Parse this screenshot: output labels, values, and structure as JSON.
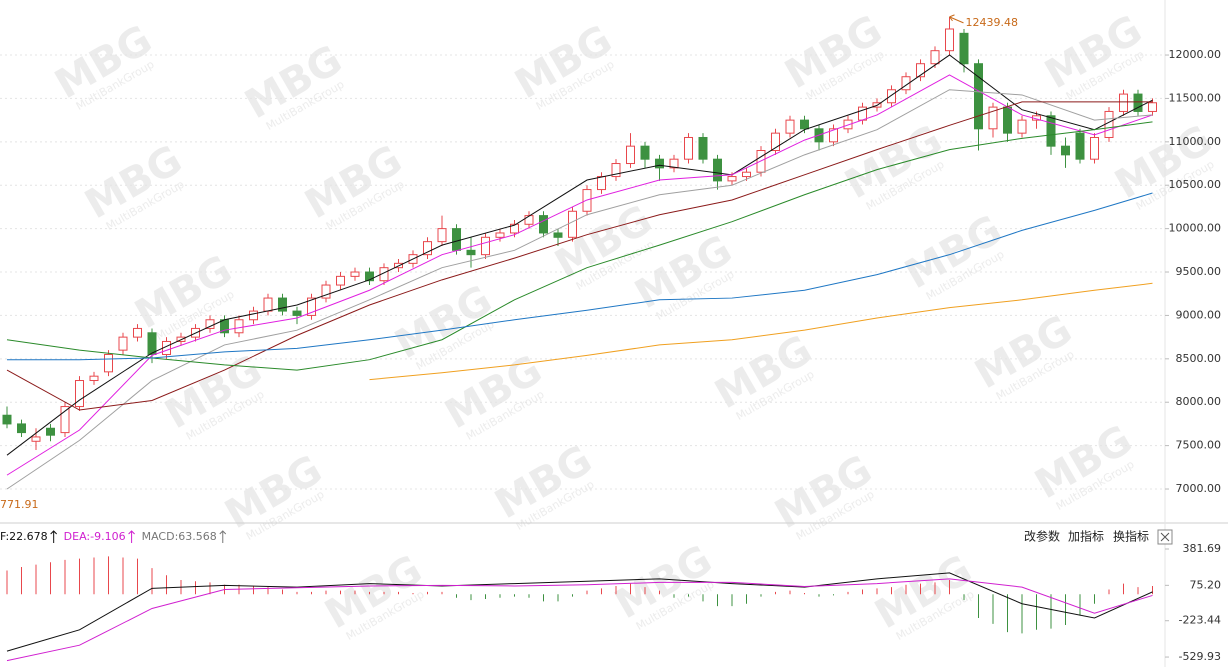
{
  "chart_data": [
    {
      "type": "candlestick",
      "ylim": [
        6620,
        12634
      ],
      "yticks": [
        {
          "value": 7000,
          "label": "7000.00"
        },
        {
          "value": 7500,
          "label": "7500.00"
        },
        {
          "value": 8000,
          "label": "8000.00"
        },
        {
          "value": 8500,
          "label": "8500.00"
        },
        {
          "value": 9000,
          "label": "9000.00"
        },
        {
          "value": 9500,
          "label": "9500.00"
        },
        {
          "value": 10000,
          "label": "10000.00"
        },
        {
          "value": 10500,
          "label": "10500.00"
        },
        {
          "value": 11000,
          "label": "11000.00"
        },
        {
          "value": 11500,
          "label": "11500.00"
        },
        {
          "value": 12000,
          "label": "12000.00"
        }
      ],
      "grid": true,
      "up_color": "#e8474c",
      "down_color": "#3d9140",
      "candles": [
        [
          7850,
          7950,
          7700,
          7750
        ],
        [
          7750,
          7800,
          7600,
          7650
        ],
        [
          7550,
          7700,
          7450,
          7600
        ],
        [
          7700,
          7750,
          7550,
          7620
        ],
        [
          7650,
          8000,
          7600,
          7950
        ],
        [
          7950,
          8300,
          7900,
          8250
        ],
        [
          8250,
          8350,
          8200,
          8300
        ],
        [
          8350,
          8600,
          8300,
          8550
        ],
        [
          8600,
          8800,
          8550,
          8750
        ],
        [
          8750,
          8900,
          8700,
          8850
        ],
        [
          8800,
          8850,
          8450,
          8550
        ],
        [
          8550,
          8750,
          8500,
          8700
        ],
        [
          8700,
          8800,
          8650,
          8750
        ],
        [
          8750,
          8900,
          8700,
          8850
        ],
        [
          8850,
          9000,
          8800,
          8950
        ],
        [
          8950,
          9000,
          8750,
          8800
        ],
        [
          8800,
          9000,
          8750,
          8950
        ],
        [
          8950,
          9100,
          8900,
          9050
        ],
        [
          9050,
          9250,
          9000,
          9200
        ],
        [
          9200,
          9250,
          9000,
          9050
        ],
        [
          9050,
          9100,
          8900,
          9000
        ],
        [
          9000,
          9250,
          8950,
          9200
        ],
        [
          9200,
          9400,
          9150,
          9350
        ],
        [
          9350,
          9500,
          9300,
          9450
        ],
        [
          9450,
          9550,
          9400,
          9500
        ],
        [
          9500,
          9550,
          9350,
          9400
        ],
        [
          9400,
          9600,
          9350,
          9550
        ],
        [
          9550,
          9650,
          9500,
          9600
        ],
        [
          9600,
          9750,
          9550,
          9700
        ],
        [
          9700,
          9900,
          9650,
          9850
        ],
        [
          9850,
          10150,
          9800,
          10000
        ],
        [
          10000,
          10050,
          9700,
          9750
        ],
        [
          9750,
          9900,
          9550,
          9700
        ],
        [
          9700,
          9950,
          9650,
          9900
        ],
        [
          9900,
          10000,
          9850,
          9950
        ],
        [
          9950,
          10100,
          9900,
          10050
        ],
        [
          10050,
          10200,
          10000,
          10150
        ],
        [
          10150,
          10200,
          9900,
          9950
        ],
        [
          9950,
          10000,
          9800,
          9900
        ],
        [
          9900,
          10250,
          9850,
          10200
        ],
        [
          10200,
          10500,
          10150,
          10450
        ],
        [
          10450,
          10650,
          10400,
          10600
        ],
        [
          10600,
          10800,
          10550,
          10750
        ],
        [
          10750,
          11100,
          10700,
          10950
        ],
        [
          10950,
          11000,
          10700,
          10800
        ],
        [
          10800,
          10850,
          10550,
          10700
        ],
        [
          10700,
          10850,
          10650,
          10800
        ],
        [
          10800,
          11100,
          10750,
          11050
        ],
        [
          11050,
          11100,
          10750,
          10800
        ],
        [
          10800,
          10850,
          10450,
          10550
        ],
        [
          10550,
          10650,
          10500,
          10600
        ],
        [
          10600,
          10700,
          10550,
          10650
        ],
        [
          10650,
          10950,
          10600,
          10900
        ],
        [
          10900,
          11150,
          10850,
          11100
        ],
        [
          11100,
          11300,
          11050,
          11250
        ],
        [
          11250,
          11300,
          11100,
          11150
        ],
        [
          11150,
          11200,
          10900,
          11000
        ],
        [
          11000,
          11200,
          10950,
          11150
        ],
        [
          11150,
          11300,
          11100,
          11250
        ],
        [
          11250,
          11450,
          11200,
          11400
        ],
        [
          11400,
          11500,
          11350,
          11450
        ],
        [
          11450,
          11650,
          11400,
          11600
        ],
        [
          11600,
          11800,
          11550,
          11750
        ],
        [
          11750,
          11950,
          11700,
          11900
        ],
        [
          11900,
          12100,
          11850,
          12050
        ],
        [
          12050,
          12439.48,
          12000,
          12300
        ],
        [
          12250,
          12300,
          11800,
          11900
        ],
        [
          11900,
          11950,
          10900,
          11150
        ],
        [
          11150,
          11450,
          11050,
          11400
        ],
        [
          11400,
          11450,
          11000,
          11100
        ],
        [
          11100,
          11300,
          11050,
          11250
        ],
        [
          11250,
          11350,
          11150,
          11300
        ],
        [
          11300,
          11350,
          10850,
          10950
        ],
        [
          10950,
          11050,
          10700,
          10850
        ],
        [
          11100,
          11150,
          10750,
          10800
        ],
        [
          10800,
          11100,
          10750,
          11050
        ],
        [
          11050,
          11400,
          11000,
          11350
        ],
        [
          11350,
          11600,
          11300,
          11550
        ],
        [
          11550,
          11600,
          11300,
          11350
        ],
        [
          11350,
          11500,
          11300,
          11450
        ]
      ],
      "x": [
        0,
        5,
        10,
        15,
        20,
        25,
        30,
        35,
        40,
        45,
        50,
        55,
        60,
        65,
        70,
        75,
        79
      ],
      "series": [
        {
          "color": "#111111",
          "values": [
            7390,
            8025,
            8567,
            8950,
            9120,
            9410,
            9810,
            10040,
            10560,
            10730,
            10620,
            11140,
            11420,
            12000,
            11370,
            11140,
            11480
          ]
        },
        {
          "color": "#e020e0",
          "values": [
            7160,
            7680,
            8540,
            8830,
            8970,
            9290,
            9700,
            9930,
            10330,
            10560,
            10620,
            11020,
            11310,
            11770,
            11310,
            11080,
            11310
          ]
        },
        {
          "color": "#a0a0a0",
          "values": [
            7000,
            7560,
            8250,
            8660,
            8830,
            9180,
            9550,
            9750,
            10160,
            10390,
            10500,
            10850,
            11140,
            11600,
            11540,
            11250,
            11310
          ]
        },
        {
          "color": "#8b1a1a",
          "values": [
            8370,
            7910,
            8020,
            8370,
            8770,
            9120,
            9410,
            9660,
            9930,
            10160,
            10330,
            10620,
            10910,
            11190,
            11460,
            11460,
            11460
          ]
        },
        {
          "color": "#2a8a2a",
          "values": [
            8720,
            8600,
            8510,
            8430,
            8370,
            8490,
            8720,
            9180,
            9550,
            9810,
            10080,
            10390,
            10680,
            10910,
            11040,
            11140,
            11230
          ]
        },
        {
          "color": "#1f77c4",
          "values": [
            8490,
            8490,
            8510,
            8580,
            8620,
            8720,
            8830,
            8950,
            9060,
            9180,
            9200,
            9290,
            9470,
            9700,
            9980,
            10210,
            10410
          ]
        },
        {
          "color": "#f0a020",
          "values": [
            null,
            null,
            null,
            null,
            null,
            8260,
            8340,
            8430,
            8540,
            8660,
            8720,
            8830,
            8970,
            9090,
            9180,
            9290,
            9370
          ]
        }
      ],
      "annotations": [
        {
          "text": "12439.48",
          "candle": 65
        },
        {
          "text": "771.91"
        }
      ]
    },
    {
      "type": "macd",
      "ylim": [
        -597,
        542
      ],
      "yticks": [
        381.69,
        {
          "value": 75.2,
          "label": "75.20"
        },
        -223.44,
        -529.93
      ],
      "indicators": [
        {
          "text": "F:22.678",
          "color": "#111111"
        },
        {
          "text": "DEA:-9.106",
          "color": "#d020d0"
        },
        {
          "text": "MACD:63.568",
          "color": "#777777"
        }
      ],
      "bar_up_color": "#e8474c",
      "bar_down_color": "#3d9140",
      "bars": [
        200,
        230,
        250,
        270,
        290,
        300,
        310,
        320,
        310,
        300,
        220,
        160,
        120,
        110,
        100,
        80,
        80,
        70,
        60,
        40,
        20,
        20,
        30,
        30,
        30,
        20,
        20,
        20,
        10,
        20,
        20,
        -30,
        -50,
        -40,
        -30,
        -20,
        -30,
        -60,
        -60,
        -20,
        30,
        50,
        70,
        90,
        60,
        30,
        -30,
        -20,
        -60,
        -100,
        -100,
        -80,
        -20,
        20,
        30,
        10,
        -20,
        -10,
        20,
        40,
        50,
        60,
        80,
        90,
        100,
        120,
        -50,
        -200,
        -250,
        -320,
        -330,
        -300,
        -290,
        -260,
        -180,
        -80,
        40,
        90,
        60,
        70
      ],
      "x": [
        0,
        5,
        10,
        15,
        20,
        25,
        30,
        35,
        40,
        45,
        50,
        55,
        60,
        65,
        70,
        75,
        79
      ],
      "series": [
        {
          "color": "#111111",
          "values": [
            -480,
            -300,
            50,
            75,
            60,
            90,
            70,
            90,
            110,
            130,
            90,
            60,
            130,
            180,
            -80,
            -200,
            20
          ]
        },
        {
          "color": "#d020d0",
          "values": [
            -560,
            -430,
            -120,
            40,
            55,
            70,
            75,
            70,
            80,
            100,
            100,
            65,
            90,
            130,
            60,
            -160,
            -10
          ]
        }
      ]
    }
  ],
  "buttons": [
    "改参数",
    "加指标",
    "换指标"
  ],
  "watermark": {
    "logo": "MBG",
    "sub": "MultiBankGroup"
  }
}
